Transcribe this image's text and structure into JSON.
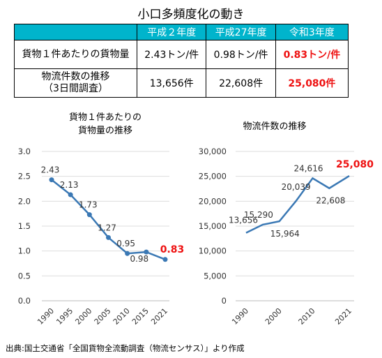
{
  "title": "小口多頻度化の動き",
  "table": {
    "headers": [
      "",
      "平成２年度",
      "平成27年度",
      "令和3年度"
    ],
    "rows": [
      {
        "label": [
          "貨物１件あたりの貨物量"
        ],
        "values": [
          "2.43トン/件",
          "0.98トン/件",
          "0.83トン/件"
        ]
      },
      {
        "label": [
          "物流件数の推移",
          "（3日間調査）"
        ],
        "values": [
          "13,656件",
          "22,608件",
          "25,080件"
        ]
      }
    ],
    "highlight_color": "#ee1111",
    "header_color": "#00b4cc"
  },
  "chart_data": [
    {
      "type": "line",
      "title": [
        "貨物１件あたりの",
        "貨物量の推移"
      ],
      "x": [
        "1990",
        "1995",
        "2000",
        "2005",
        "2010",
        "2015",
        "2021"
      ],
      "values": [
        2.43,
        2.13,
        1.73,
        1.27,
        0.95,
        0.98,
        0.83
      ],
      "data_labels": [
        "2.43",
        "2.13",
        "1.73",
        "1.27",
        "0.95",
        "0.98",
        "0.83"
      ],
      "highlight_index": 6,
      "yticks": [
        "0.0",
        "0.5",
        "1.0",
        "1.5",
        "2.0",
        "2.5",
        "3.0"
      ],
      "ylim": [
        0,
        3
      ],
      "grid": true,
      "color": "#3a78b4"
    },
    {
      "type": "line",
      "title": [
        "物流件数の推移"
      ],
      "xticks": [
        "1990",
        "2000",
        "2010",
        "2021"
      ],
      "x": [
        1990,
        1995,
        2000,
        2005,
        2010,
        2015,
        2021
      ],
      "values": [
        13656,
        15290,
        15964,
        20039,
        24616,
        22608,
        25080
      ],
      "data_labels": [
        "13,656",
        "15,290",
        "15,964",
        "20,039",
        "24,616",
        "22,608",
        "25,080"
      ],
      "highlight_index": 6,
      "yticks": [
        "0",
        "5,000",
        "10,000",
        "15,000",
        "20,000",
        "25,000",
        "30,000"
      ],
      "ylim": [
        0,
        30000
      ],
      "grid": true,
      "color": "#3a78b4"
    }
  ],
  "source": "出典:国土交通省「全国貨物全流動調査（物流センサス）」より作成"
}
